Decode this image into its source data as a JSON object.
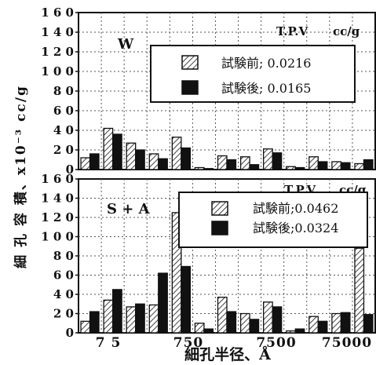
{
  "chart_data": {
    "type": "bar",
    "ylabel": "細 孔 容 積、x10⁻³ cc/g",
    "xlabel": "細孔半径、Å",
    "x_ticks": [
      "7 5",
      "750",
      "7500",
      "75000"
    ],
    "y_ticks": [
      "0",
      "2 0",
      "4 0",
      "6 0",
      "8 0",
      "1 0 0",
      "1 2 0",
      "1 4 0",
      "1 6 0"
    ],
    "ylim": [
      0,
      160
    ],
    "grid": "dotted",
    "panels": [
      {
        "label": "W",
        "tpv_label": "T.P.V",
        "tpv_unit": "cc/g",
        "series": [
          {
            "name": "試験前",
            "value_label": "0.0216",
            "pattern": "hatched",
            "values": [
              12,
              42,
              27,
              16,
              33,
              2,
              14,
              13,
              21,
              3,
              13,
              8,
              6
            ]
          },
          {
            "name": "試験後",
            "value_label": "0.0165",
            "pattern": "solid",
            "values": [
              16,
              36,
              20,
              11,
              22,
              1,
              10,
              5,
              17,
              2,
              8,
              7,
              10
            ]
          }
        ]
      },
      {
        "label": "S + A",
        "tpv_label": "T.P.V",
        "tpv_unit": "cc/g",
        "series": [
          {
            "name": "試験前",
            "value_label": "0.0462",
            "pattern": "hatched",
            "values": [
              12,
              34,
              27,
              29,
              125,
              10,
              37,
              20,
              32,
              2,
              17,
              20,
              88
            ]
          },
          {
            "name": "試験後",
            "value_label": "0.0324",
            "pattern": "solid",
            "values": [
              22,
              45,
              30,
              62,
              69,
              4,
              22,
              14,
              27,
              4,
              12,
              21,
              19
            ]
          }
        ]
      }
    ]
  },
  "legend_separator": ";"
}
